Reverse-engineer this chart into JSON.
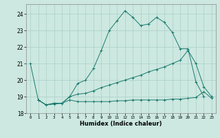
{
  "xlabel": "Humidex (Indice chaleur)",
  "background_color": "#cce8e0",
  "grid_color": "#aacfc8",
  "line_color": "#1a7a6e",
  "xlim": [
    -0.5,
    23.5
  ],
  "ylim": [
    18.0,
    24.6
  ],
  "yticks": [
    18,
    19,
    20,
    21,
    22,
    23,
    24
  ],
  "xticks": [
    0,
    1,
    2,
    3,
    4,
    5,
    6,
    7,
    8,
    9,
    10,
    11,
    12,
    13,
    14,
    15,
    16,
    17,
    18,
    19,
    20,
    21,
    22,
    23
  ],
  "series": [
    {
      "x": [
        0,
        1,
        2,
        3,
        4,
        5,
        6,
        7,
        8,
        9,
        10,
        11,
        12,
        13,
        14,
        15,
        16,
        17,
        18,
        19,
        20,
        21,
        22
      ],
      "y": [
        21.0,
        18.8,
        18.5,
        18.6,
        18.6,
        19.0,
        19.8,
        20.0,
        20.7,
        21.8,
        23.0,
        23.6,
        24.2,
        23.8,
        23.3,
        23.4,
        23.8,
        23.5,
        22.9,
        21.9,
        21.9,
        19.9,
        19.0
      ]
    },
    {
      "x": [
        1,
        2,
        3,
        4,
        5,
        6,
        7,
        8,
        9,
        10,
        11,
        12,
        13,
        14,
        15,
        16,
        17,
        18,
        19,
        20,
        21,
        22,
        23
      ],
      "y": [
        18.8,
        18.5,
        18.6,
        18.6,
        19.0,
        19.15,
        19.2,
        19.35,
        19.55,
        19.7,
        19.85,
        20.0,
        20.15,
        20.3,
        20.5,
        20.65,
        20.8,
        21.0,
        21.2,
        21.8,
        21.0,
        19.6,
        19.0
      ]
    },
    {
      "x": [
        1,
        2,
        3,
        4,
        5,
        6,
        7,
        8,
        9,
        10,
        11,
        12,
        13,
        14,
        15,
        16,
        17,
        18,
        19,
        20,
        21,
        22,
        23
      ],
      "y": [
        18.8,
        18.5,
        18.55,
        18.6,
        18.8,
        18.7,
        18.7,
        18.7,
        18.7,
        18.7,
        18.75,
        18.75,
        18.8,
        18.8,
        18.8,
        18.8,
        18.8,
        18.85,
        18.85,
        18.9,
        18.95,
        19.3,
        18.9
      ]
    }
  ]
}
